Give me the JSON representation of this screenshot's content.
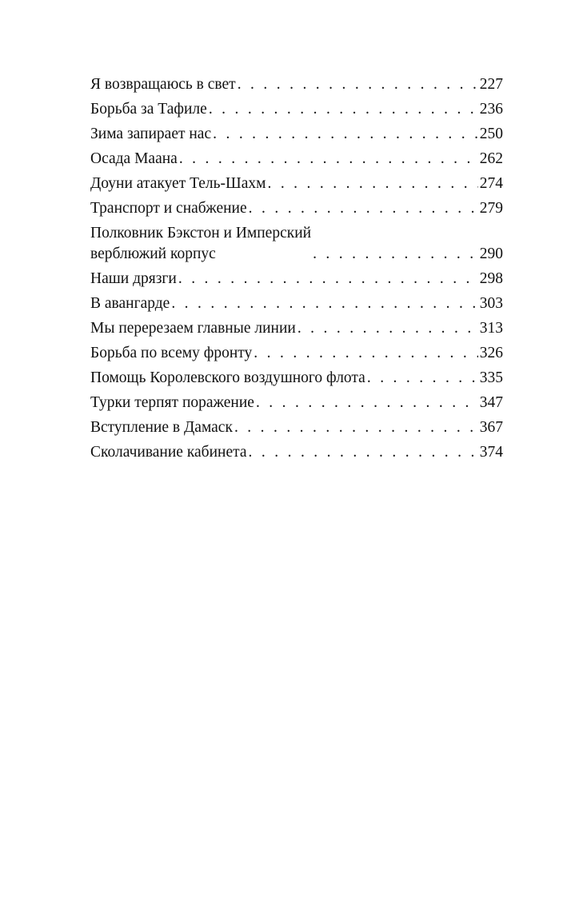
{
  "toc": {
    "entries": [
      {
        "title": "Я возвращаюсь в свет",
        "page": "227"
      },
      {
        "title": "Борьба за Тафиле",
        "page": "236"
      },
      {
        "title": "Зима запирает нас",
        "page": "250"
      },
      {
        "title": "Осада Маана",
        "page": "262"
      },
      {
        "title": "Доуни атакует Тель-Шахм",
        "page": "274"
      },
      {
        "title": "Транспорт и снабжение",
        "page": "279"
      },
      {
        "title": "Полковник Бэкстон и Имперский\nверблюжий корпус",
        "page": "290"
      },
      {
        "title": "Наши дрязги",
        "page": "298"
      },
      {
        "title": "В авангарде",
        "page": "303"
      },
      {
        "title": "Мы перерезаем главные линии",
        "page": "313"
      },
      {
        "title": "Борьба по всему фронту",
        "page": "326"
      },
      {
        "title": "Помощь Королевского воздушного флота",
        "page": "335"
      },
      {
        "title": "Турки терпят поражение",
        "page": "347"
      },
      {
        "title": "Вступление в Дамаск",
        "page": "367"
      },
      {
        "title": "Сколачивание кабинета",
        "page": "374"
      }
    ]
  }
}
